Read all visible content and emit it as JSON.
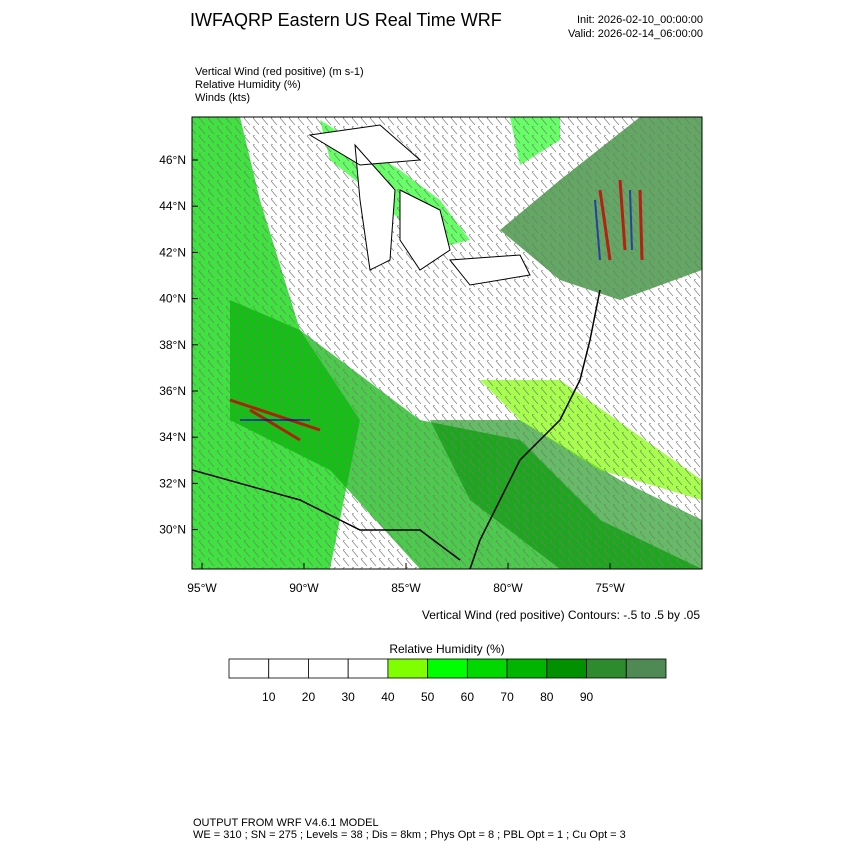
{
  "header": {
    "title": "IWFAQRP Eastern US Real Time WRF",
    "init": "Init: 2026-02-10_00:00:00",
    "valid": "Valid: 2026-02-14_06:00:00"
  },
  "fields": [
    "Vertical Wind (red positive)   (m s-1)",
    "Relative Humidity   (%)",
    "Winds   (kts)"
  ],
  "latitude_labels": [
    "46°N",
    "44°N",
    "42°N",
    "40°N",
    "38°N",
    "36°N",
    "34°N",
    "32°N",
    "30°N"
  ],
  "longitude_labels": [
    "95°W",
    "90°W",
    "85°W",
    "80°W",
    "75°W"
  ],
  "contour_note": "Vertical Wind (red positive) Contours: -.5 to .5 by .05",
  "colorbar": {
    "title": "Relative Humidity   (%)",
    "labels": [
      "10",
      "20",
      "30",
      "40",
      "50",
      "60",
      "70",
      "80",
      "90"
    ],
    "colors": [
      "#ffffff",
      "#ffffff",
      "#ffffff",
      "#ffffff",
      "#80ff00",
      "#00ff00",
      "#00d800",
      "#00b400",
      "#009000",
      "#2d8a2d",
      "#4f8a55"
    ]
  },
  "footer": [
    "OUTPUT FROM WRF V4.6.1 MODEL",
    "WE = 310 ; SN = 275 ; Levels = 38 ; Dis = 8km ; Phys Opt = 8 ; PBL Opt = 1 ; Cu Opt = 3"
  ]
}
